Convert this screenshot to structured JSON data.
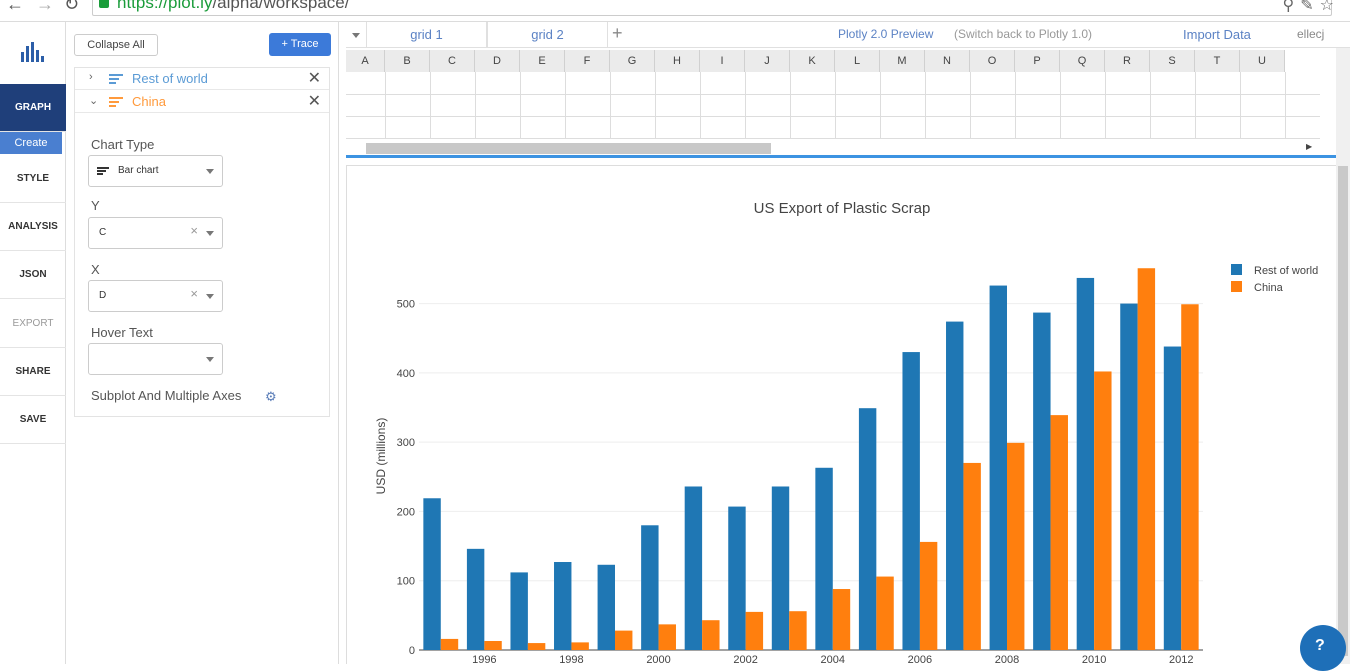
{
  "browser": {
    "url_scheme": "https://",
    "url_host": "plot.ly",
    "url_path": "/alpha/workspace/"
  },
  "nav": {
    "graph": "GRAPH",
    "create": "Create",
    "style": "STYLE",
    "analysis": "ANALYSIS",
    "json": "JSON",
    "export": "EXPORT",
    "share": "SHARE",
    "save": "SAVE"
  },
  "panel": {
    "collapse_all": "Collapse All",
    "add_trace": "+ Trace",
    "traces": [
      {
        "name": "Rest of world",
        "color": "#1f77b4"
      },
      {
        "name": "China",
        "color": "#ff7f0e"
      }
    ],
    "chart_type_label": "Chart Type",
    "chart_type_value": "Bar chart",
    "y_label": "Y",
    "y_value": "C",
    "x_label": "X",
    "x_value": "D",
    "hover_label": "Hover Text",
    "hover_value": "",
    "subplot_label": "Subplot And Multiple Axes"
  },
  "grid": {
    "tabs": [
      "grid 1",
      "grid 2"
    ],
    "preview": "Plotly 2.0 Preview",
    "switch_back": "(Switch back to Plotly 1.0)",
    "import": "Import Data",
    "user": "ellecj",
    "columns": [
      "A",
      "B",
      "C",
      "D",
      "E",
      "F",
      "G",
      "H",
      "I",
      "J",
      "K",
      "L",
      "M",
      "N",
      "O",
      "P",
      "Q",
      "R",
      "S",
      "T",
      "U"
    ]
  },
  "chart_data": {
    "type": "bar",
    "title": "US Export of Plastic Scrap",
    "ylabel": "USD (millions)",
    "xlabel": "",
    "ylim": [
      0,
      560
    ],
    "yticks": [
      0,
      100,
      200,
      300,
      400,
      500
    ],
    "xticks": [
      "1996",
      "1998",
      "2000",
      "2002",
      "2004",
      "2006",
      "2008",
      "2010",
      "2012"
    ],
    "categories": [
      "1995",
      "1996",
      "1997",
      "1998",
      "1999",
      "2000",
      "2001",
      "2002",
      "2003",
      "2004",
      "2005",
      "2006",
      "2007",
      "2008",
      "2009",
      "2010",
      "2011",
      "2012"
    ],
    "legend_position": "top-right",
    "series": [
      {
        "name": "Rest of world",
        "color": "#1f77b4",
        "values": [
          219,
          146,
          112,
          127,
          123,
          180,
          236,
          207,
          236,
          263,
          349,
          430,
          474,
          526,
          487,
          537,
          500,
          438
        ]
      },
      {
        "name": "China",
        "color": "#ff7f0e",
        "values": [
          16,
          13,
          10,
          11,
          28,
          37,
          43,
          55,
          56,
          88,
          106,
          156,
          270,
          299,
          339,
          402,
          551,
          499
        ]
      }
    ]
  }
}
